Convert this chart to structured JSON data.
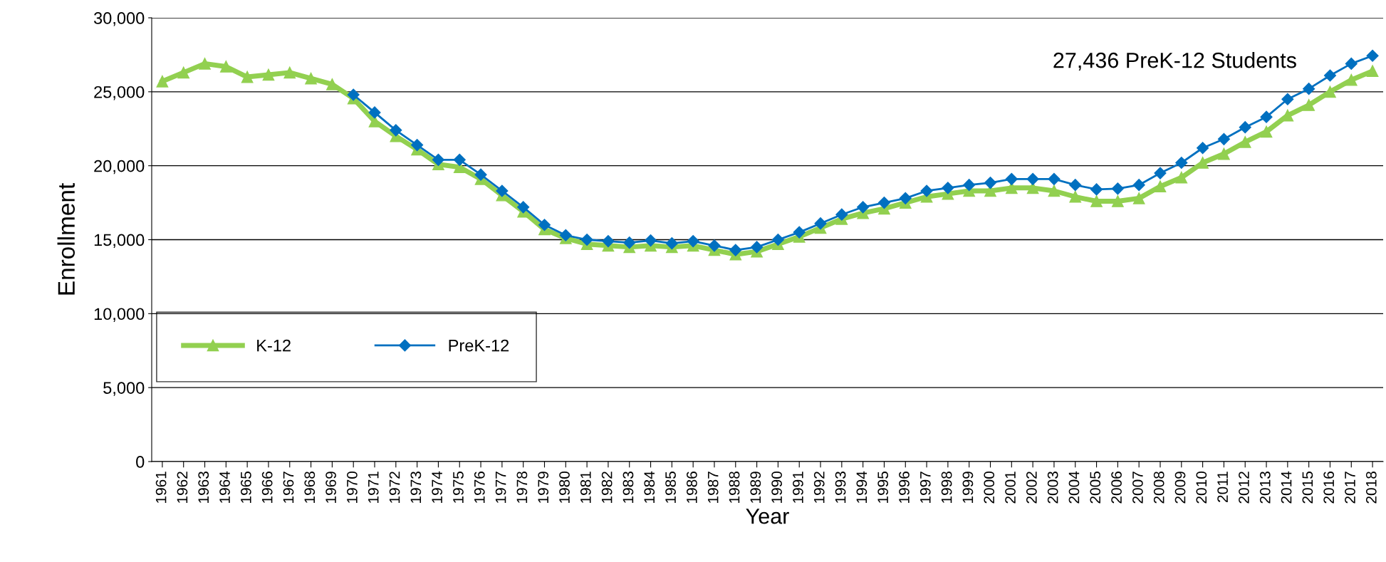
{
  "chart_data": {
    "type": "line",
    "xlabel": "Year",
    "ylabel": "Enrollment",
    "categories": [
      "1961",
      "1962",
      "1963",
      "1964",
      "1965",
      "1966",
      "1967",
      "1968",
      "1969",
      "1970",
      "1971",
      "1972",
      "1973",
      "1974",
      "1975",
      "1976",
      "1977",
      "1978",
      "1979",
      "1980",
      "1981",
      "1982",
      "1983",
      "1984",
      "1985",
      "1986",
      "1987",
      "1988",
      "1989",
      "1990",
      "1991",
      "1992",
      "1993",
      "1994",
      "1995",
      "1996",
      "1997",
      "1998",
      "1999",
      "2000",
      "2001",
      "2002",
      "2003",
      "2004",
      "2005",
      "2006",
      "2007",
      "2008",
      "2009",
      "2010",
      "2011",
      "2012",
      "2013",
      "2014",
      "2015",
      "2016",
      "2017",
      "2018"
    ],
    "series": [
      {
        "name": "K-12",
        "color": "#92d050",
        "marker": "triangle",
        "values": [
          25700,
          26300,
          26900,
          26700,
          26000,
          26150,
          26300,
          25900,
          25500,
          24550,
          23000,
          22000,
          21100,
          20100,
          19900,
          19100,
          18000,
          16900,
          15700,
          15100,
          14700,
          14600,
          14500,
          14600,
          14500,
          14600,
          14300,
          14000,
          14200,
          14700,
          15200,
          15800,
          16400,
          16800,
          17100,
          17500,
          17900,
          18100,
          18300,
          18300,
          18500,
          18500,
          18300,
          17900,
          17600,
          17600,
          17800,
          18600,
          19200,
          20200,
          20800,
          21600,
          22300,
          23400,
          24100,
          25000,
          25800,
          26400
        ]
      },
      {
        "name": "PreK-12",
        "color": "#0070c0",
        "marker": "diamond",
        "values": [
          null,
          null,
          null,
          null,
          null,
          null,
          null,
          null,
          null,
          24800,
          23600,
          22400,
          21400,
          20400,
          20400,
          19400,
          18300,
          17200,
          16000,
          15300,
          15000,
          14900,
          14800,
          14950,
          14750,
          14900,
          14600,
          14300,
          14500,
          15000,
          15500,
          16100,
          16700,
          17200,
          17500,
          17800,
          18300,
          18500,
          18700,
          18850,
          19100,
          19100,
          19100,
          18700,
          18400,
          18450,
          18700,
          19500,
          20200,
          21200,
          21800,
          22600,
          23300,
          24500,
          25200,
          26100,
          26900,
          27436
        ]
      }
    ],
    "ylim": [
      0,
      30000
    ],
    "yticks": [
      {
        "value": 0,
        "label": "0"
      },
      {
        "value": 5000,
        "label": "5,000"
      },
      {
        "value": 10000,
        "label": "10,000"
      },
      {
        "value": 15000,
        "label": "15,000"
      },
      {
        "value": 20000,
        "label": "20,000"
      },
      {
        "value": 25000,
        "label": "25,000"
      },
      {
        "value": 30000,
        "label": "30,000"
      }
    ],
    "grid": "y",
    "legend": "left",
    "line_style": "solid",
    "annotations": [
      "27,436 PreK-12 Students"
    ]
  }
}
